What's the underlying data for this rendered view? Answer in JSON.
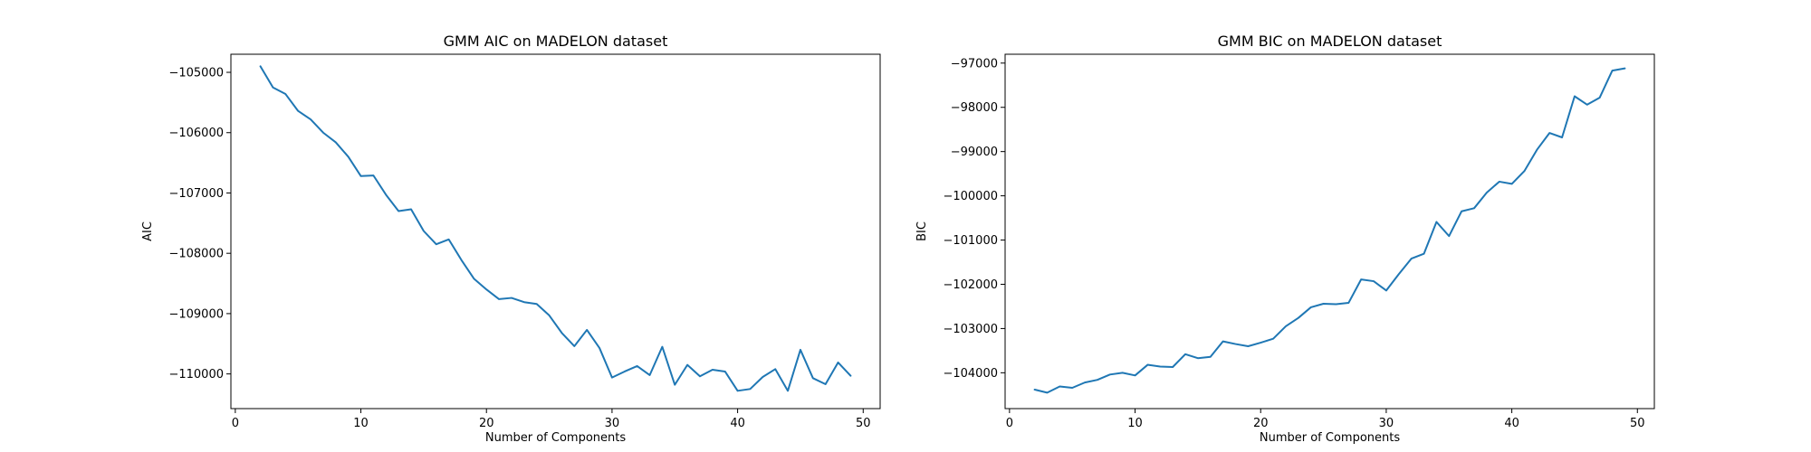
{
  "chart_data": [
    {
      "type": "line",
      "title": "GMM AIC on MADELON dataset",
      "xlabel": "Number of Components",
      "ylabel": "AIC",
      "xlim": [
        -0.35,
        51.35
      ],
      "ylim": [
        -110575,
        -104700
      ],
      "xticks": [
        0,
        10,
        20,
        30,
        40,
        50
      ],
      "yticks": [
        -110000,
        -109000,
        -108000,
        -107000,
        -106000,
        -105000
      ],
      "grid": false,
      "color": "#1f77b4",
      "series": [
        {
          "x": [
            2,
            3,
            4,
            5,
            6,
            7,
            8,
            9,
            10,
            11,
            12,
            13,
            14,
            15,
            16,
            17,
            18,
            19,
            20,
            21,
            22,
            23,
            24,
            25,
            26,
            27,
            28,
            29,
            30,
            31,
            32,
            33,
            34,
            35,
            36,
            37,
            38,
            39,
            40,
            41,
            42,
            43,
            44,
            45,
            46,
            47,
            48,
            49
          ],
          "values": [
            -104900,
            -105250,
            -105360,
            -105640,
            -105780,
            -106000,
            -106160,
            -106400,
            -106720,
            -106710,
            -107030,
            -107300,
            -107270,
            -107630,
            -107850,
            -107770,
            -108110,
            -108420,
            -108600,
            -108760,
            -108740,
            -108810,
            -108840,
            -109030,
            -109320,
            -109540,
            -109270,
            -109570,
            -110060,
            -109960,
            -109870,
            -110020,
            -109550,
            -110180,
            -109850,
            -110040,
            -109930,
            -109960,
            -110280,
            -110250,
            -110050,
            -109920,
            -110280,
            -109600,
            -110070,
            -110170,
            -109810,
            -110030
          ]
        }
      ]
    },
    {
      "type": "line",
      "title": "GMM BIC on MADELON dataset",
      "xlabel": "Number of Components",
      "ylabel": "BIC",
      "xlim": [
        -0.35,
        51.35
      ],
      "ylim": [
        -104810,
        -96800
      ],
      "xticks": [
        0,
        10,
        20,
        30,
        40,
        50
      ],
      "yticks": [
        -104000,
        -103000,
        -102000,
        -101000,
        -100000,
        -99000,
        -98000,
        -97000
      ],
      "grid": false,
      "color": "#1f77b4",
      "series": [
        {
          "x": [
            2,
            3,
            4,
            5,
            6,
            7,
            8,
            9,
            10,
            11,
            12,
            13,
            14,
            15,
            16,
            17,
            18,
            19,
            20,
            21,
            22,
            23,
            24,
            25,
            26,
            27,
            28,
            29,
            30,
            31,
            32,
            33,
            34,
            35,
            36,
            37,
            38,
            39,
            40,
            41,
            42,
            43,
            44,
            45,
            46,
            47,
            48,
            49
          ],
          "values": [
            -104380,
            -104450,
            -104310,
            -104340,
            -104220,
            -104160,
            -104040,
            -104000,
            -104060,
            -103820,
            -103860,
            -103870,
            -103580,
            -103670,
            -103640,
            -103290,
            -103350,
            -103400,
            -103320,
            -103230,
            -102950,
            -102760,
            -102520,
            -102440,
            -102450,
            -102420,
            -101890,
            -101930,
            -102140,
            -101770,
            -101420,
            -101310,
            -100590,
            -100910,
            -100350,
            -100280,
            -99930,
            -99680,
            -99730,
            -99440,
            -98960,
            -98580,
            -98680,
            -97750,
            -97940,
            -97780,
            -97170,
            -97120
          ]
        }
      ]
    }
  ]
}
